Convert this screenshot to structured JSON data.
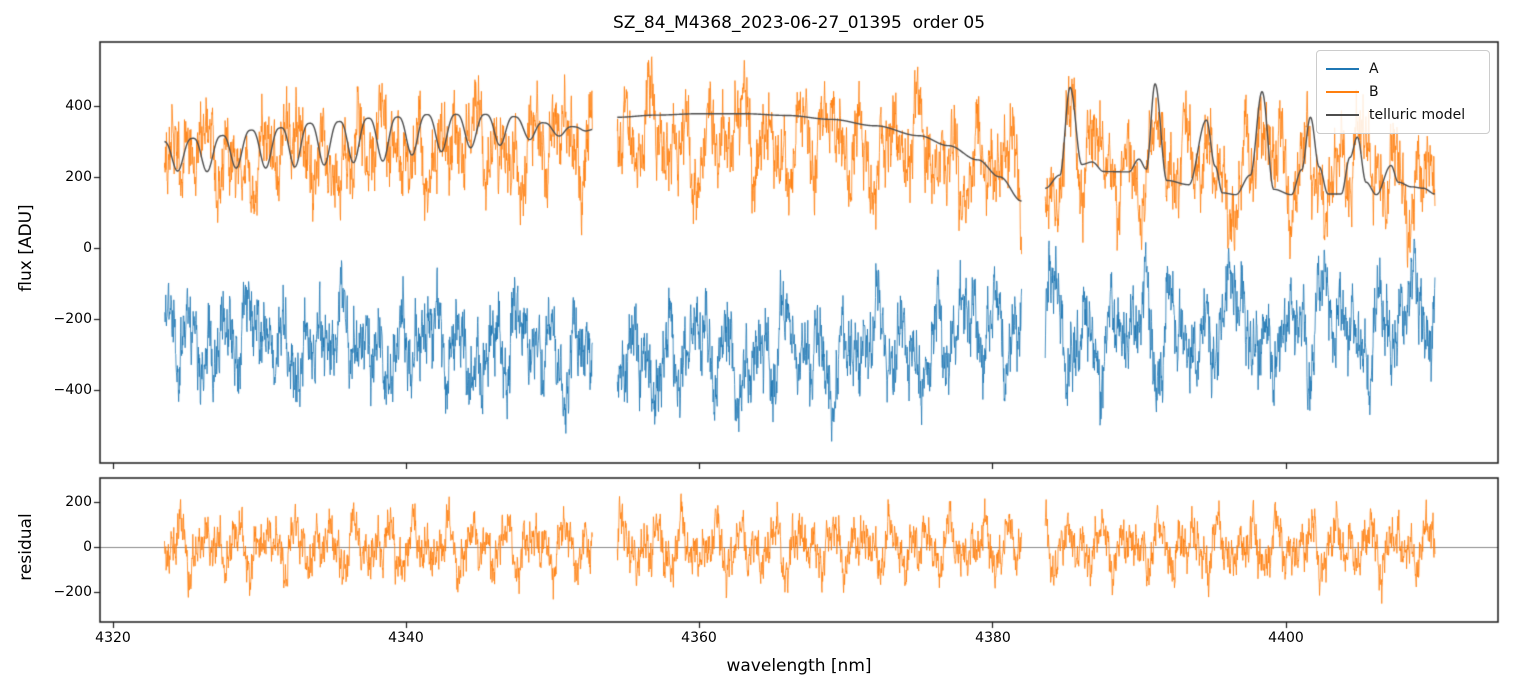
{
  "figure": {
    "title": "SZ_84_M4368_2023-06-27_01395  order 05",
    "background": "#ffffff"
  },
  "axes": {
    "x_label": "wavelength [nm]",
    "x_tick_labels": [
      "4320",
      "4340",
      "4360",
      "4380",
      "4400"
    ],
    "top_y_label": "flux [ADU]",
    "top_y_tick_labels": [
      "400",
      "200",
      "0",
      "−200",
      "−400"
    ],
    "bottom_y_label": "residual",
    "bottom_y_tick_labels": [
      "200",
      "0",
      "−200"
    ]
  },
  "legend": {
    "position": "upper right",
    "items": [
      {
        "label": "A",
        "color": "#1f77b4"
      },
      {
        "label": "B",
        "color": "#ff7f0e"
      },
      {
        "label": "telluric model",
        "color": "#4d4d4d"
      }
    ]
  },
  "chart_data": {
    "type": "line",
    "title": "SZ_84_M4368_2023-06-27_01395  order 05",
    "x": {
      "label": "wavelength [nm]",
      "lim": [
        4319.1,
        4414.5
      ],
      "ticks": [
        4320,
        4340,
        4360,
        4380,
        4400
      ],
      "unit": "nm"
    },
    "segments": [
      [
        4323.5,
        4352.7
      ],
      [
        4354.4,
        4382.0
      ],
      [
        4383.6,
        4410.2
      ]
    ],
    "panels": [
      {
        "name": "flux",
        "ylabel": "flux [ADU]",
        "ylim": [
          -606,
          580
        ],
        "yticks": [
          400,
          200,
          0,
          -200,
          -400
        ],
        "series": [
          {
            "name": "A",
            "color": "#1f77b4",
            "kind": "noisy_spectrum",
            "mean_level": -280,
            "approx_range": [
              -590,
              25
            ]
          },
          {
            "name": "B",
            "color": "#ff7f0e",
            "kind": "noisy_spectrum",
            "mean_level": 275,
            "approx_range": [
              -55,
              560
            ]
          },
          {
            "name": "telluric model",
            "color": "#4d4d4d",
            "kind": "smooth_model",
            "approx_range": [
              130,
              465
            ]
          }
        ]
      },
      {
        "name": "residual",
        "ylabel": "residual",
        "ylim": [
          -333,
          306
        ],
        "yticks": [
          200,
          0,
          -200
        ],
        "zero_line": true,
        "series": [
          {
            "name": "residual",
            "color": "#ff7f0e",
            "kind": "noisy",
            "mean_level": 0,
            "approx_range": [
              -295,
              290
            ]
          }
        ]
      }
    ],
    "telluric_model": {
      "seg1": {
        "range": [
          4323.5,
          4352.7
        ],
        "period_nm": 2.0,
        "phase_origin": 4323.4,
        "dip_sharpness": 3,
        "top_points": [
          [
            4323.5,
            300
          ],
          [
            4326,
            310
          ],
          [
            4330,
            333
          ],
          [
            4334,
            352
          ],
          [
            4338,
            366
          ],
          [
            4342,
            376
          ],
          [
            4346,
            376
          ],
          [
            4348,
            368
          ],
          [
            4349.5,
            352
          ],
          [
            4351,
            342
          ],
          [
            4352.7,
            338
          ]
        ],
        "dip_depth_points": [
          [
            4323.5,
            85
          ],
          [
            4328,
            100
          ],
          [
            4333,
            118
          ],
          [
            4338,
            122
          ],
          [
            4342,
            105
          ],
          [
            4346,
            88
          ],
          [
            4348.5,
            60
          ],
          [
            4350.5,
            30
          ],
          [
            4351.8,
            14
          ],
          [
            4352.7,
            6
          ]
        ]
      },
      "seg2": {
        "range": [
          4354.4,
          4382.0
        ],
        "points": [
          [
            4354.4,
            368
          ],
          [
            4357,
            374
          ],
          [
            4360,
            378
          ],
          [
            4363,
            378
          ],
          [
            4366,
            373
          ],
          [
            4369,
            362
          ],
          [
            4372,
            344
          ],
          [
            4375,
            316
          ],
          [
            4377,
            288
          ],
          [
            4379,
            248
          ],
          [
            4380.5,
            200
          ],
          [
            4382,
            132
          ]
        ]
      },
      "seg3": {
        "range": [
          4383.6,
          4410.2
        ],
        "points": [
          [
            4383.6,
            168
          ],
          [
            4384.6,
            205
          ],
          [
            4385.3,
            452
          ],
          [
            4386.1,
            235
          ],
          [
            4386.8,
            242
          ],
          [
            4387.6,
            215
          ],
          [
            4389.3,
            214
          ],
          [
            4390.0,
            250
          ],
          [
            4390.5,
            222
          ],
          [
            4391.1,
            462
          ],
          [
            4391.9,
            190
          ],
          [
            4393.4,
            178
          ],
          [
            4394.6,
            360
          ],
          [
            4395.2,
            230
          ],
          [
            4395.7,
            155
          ],
          [
            4396.6,
            150
          ],
          [
            4397.6,
            205
          ],
          [
            4398.4,
            440
          ],
          [
            4399.2,
            165
          ],
          [
            4400.4,
            150
          ],
          [
            4401.1,
            220
          ],
          [
            4401.7,
            368
          ],
          [
            4402.3,
            228
          ],
          [
            4402.9,
            152
          ],
          [
            4403.8,
            152
          ],
          [
            4404.4,
            255
          ],
          [
            4404.9,
            312
          ],
          [
            4405.5,
            185
          ],
          [
            4406.2,
            150
          ],
          [
            4407.2,
            232
          ],
          [
            4407.7,
            185
          ],
          [
            4408.6,
            172
          ],
          [
            4409.4,
            168
          ],
          [
            4410.2,
            152
          ]
        ]
      }
    },
    "noise_model": {
      "sample_step_nm": 0.022,
      "component_periods_nm": [
        6.1,
        2.03,
        1.31,
        0.83,
        0.47,
        0.211,
        0.093
      ],
      "A": {
        "seed": 11,
        "amps": [
          45,
          70,
          48,
          38,
          30,
          36,
          26
        ],
        "jitter": 46,
        "telluric_coupling": -0.5,
        "offset": -115,
        "clamp": [
          -592,
          25
        ]
      },
      "B": {
        "seed": 23,
        "amps": [
          45,
          70,
          48,
          38,
          30,
          36,
          26
        ],
        "jitter": 46,
        "telluric_coupling": 0.5,
        "offset": 115,
        "clamp": [
          -55,
          562
        ]
      },
      "residual": {
        "seed": 37,
        "amps": [
          0,
          62,
          50,
          40,
          30,
          36,
          26
        ],
        "jitter": 42,
        "telluric_coupling": 0,
        "offset": 0,
        "clamp": [
          -298,
          292
        ]
      }
    },
    "layout": {
      "fig_w": 1513,
      "fig_h": 696,
      "top_rect": [
        100,
        42,
        1398,
        421
      ],
      "bottom_rect": [
        100,
        478,
        1398,
        144
      ],
      "frame_color": "#1a1a1a",
      "tick_color": "#1a1a1a",
      "tick_len": 6,
      "zero_line_color": "#888888",
      "legend_position": "upper right",
      "grid": false
    }
  }
}
